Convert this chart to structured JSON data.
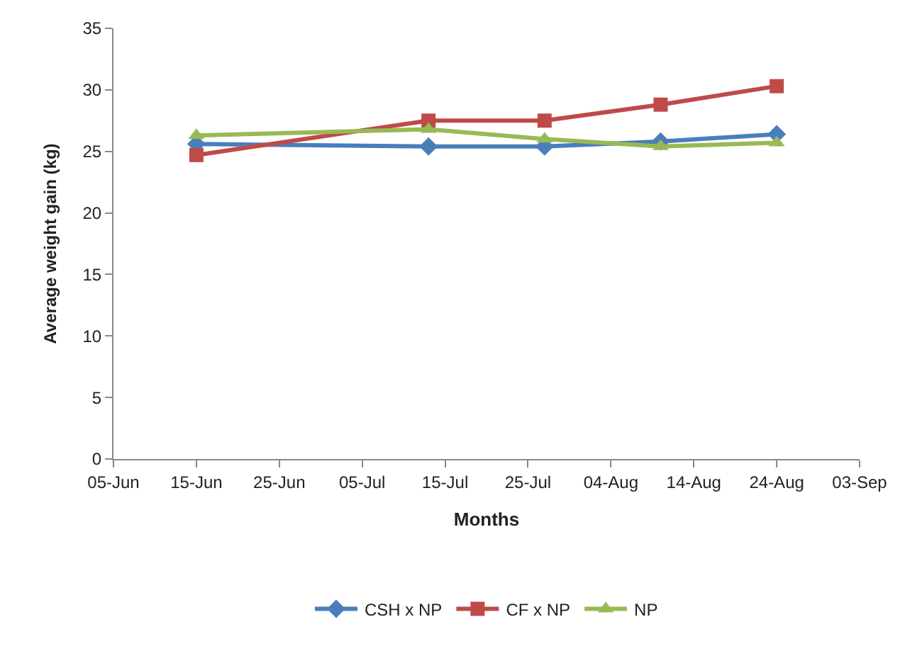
{
  "chart_data": {
    "type": "line",
    "xlabel": "Months",
    "ylabel": "Average weight gain (kg)",
    "x": [
      "--06-15",
      "--07-13",
      "--07-27",
      "--08-10",
      "--08-24"
    ],
    "series": [
      {
        "name": "CSH x NP",
        "color": "#4a7ebb",
        "marker": "diamond",
        "values": [
          25.6,
          25.4,
          25.4,
          25.8,
          26.4
        ]
      },
      {
        "name": "CF x NP",
        "color": "#be4b48",
        "marker": "square",
        "values": [
          24.7,
          27.5,
          27.5,
          28.8,
          30.3
        ]
      },
      {
        "name": "NP",
        "color": "#98b954",
        "marker": "triangle",
        "values": [
          26.3,
          26.8,
          26.0,
          25.4,
          25.7
        ]
      }
    ],
    "xlim": [
      "--06-05",
      "--09-03"
    ],
    "xticks": [
      {
        "value": "--06-05",
        "label": "05-Jun"
      },
      {
        "value": "--06-15",
        "label": "15-Jun"
      },
      {
        "value": "--06-25",
        "label": "25-Jun"
      },
      {
        "value": "--07-05",
        "label": "05-Jul"
      },
      {
        "value": "--07-15",
        "label": "15-Jul"
      },
      {
        "value": "--07-25",
        "label": "25-Jul"
      },
      {
        "value": "--08-04",
        "label": "04-Aug"
      },
      {
        "value": "--08-14",
        "label": "14-Aug"
      },
      {
        "value": "--08-24",
        "label": "24-Aug"
      },
      {
        "value": "--09-03",
        "label": "03-Sep"
      }
    ],
    "ylim": [
      0,
      35
    ],
    "yticks": [
      0,
      5,
      10,
      15,
      20,
      25,
      30,
      35
    ],
    "grid": false,
    "legend": "bottom",
    "line_style": "solid"
  }
}
